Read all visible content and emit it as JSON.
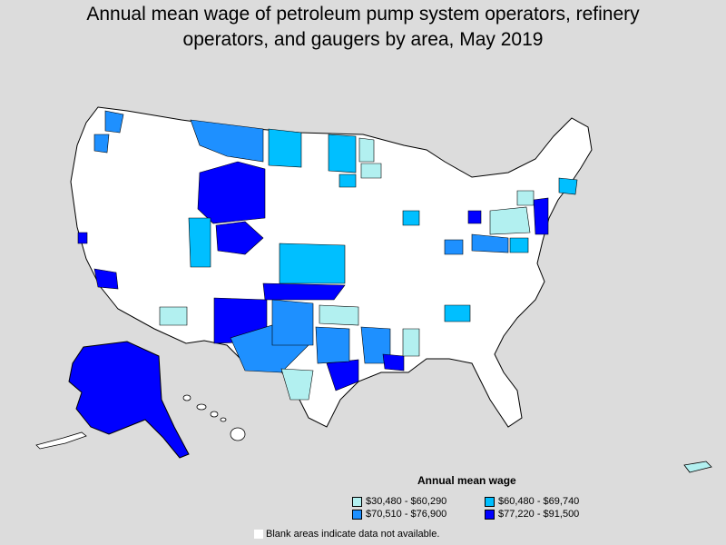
{
  "title": "Annual mean wage of petroleum pump system operators, refinery operators, and gaugers by area, May 2019",
  "title_lines": [
    "Annual mean wage of petroleum pump system operators, refinery",
    "operators, and gaugers by area, May 2019"
  ],
  "legend": {
    "title": "Annual mean wage",
    "items": [
      {
        "label": "$30,480 - $60,290",
        "color": "#b2f0f0"
      },
      {
        "label": "$60,480 - $69,740",
        "color": "#00bfff"
      },
      {
        "label": "$70,510 - $76,900",
        "color": "#1e90ff"
      },
      {
        "label": "$77,220 - $91,500",
        "color": "#0000ff"
      }
    ],
    "blank_note": "Blank areas indicate data not available.",
    "blank_color": "#ffffff"
  }
}
